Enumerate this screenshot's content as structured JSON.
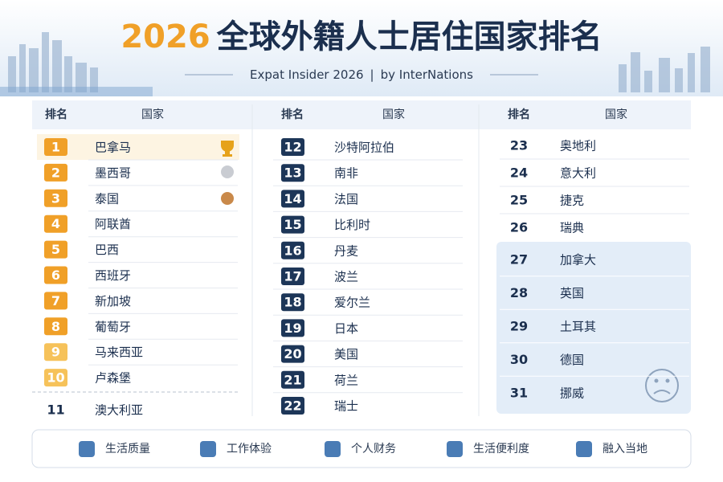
{
  "header": {
    "year": "2026",
    "title": "全球外籍人士居住国家排名",
    "subtitle": "Expat Insider 2026",
    "byline": "by InterNations"
  },
  "table": {
    "columns": [
      {
        "headers": [
          "排名",
          "国家"
        ],
        "rows": [
          [
            1,
            "巴拿马"
          ],
          [
            2,
            "墨西哥"
          ],
          [
            3,
            "泰国"
          ],
          [
            4,
            "阿联酋"
          ],
          [
            5,
            "巴西"
          ],
          [
            6,
            "西班牙"
          ],
          [
            7,
            "新加坡"
          ],
          [
            8,
            "葡萄牙"
          ],
          [
            9,
            "马来西亚"
          ],
          [
            10,
            "卢森堡"
          ],
          [
            11,
            "澳大利亚"
          ]
        ]
      },
      {
        "headers": [
          "排名",
          "国家"
        ],
        "rows": [
          [
            12,
            "沙特阿拉伯"
          ],
          [
            13,
            "南非"
          ],
          [
            14,
            "法国"
          ],
          [
            15,
            "比利时"
          ],
          [
            16,
            "丹麦"
          ],
          [
            17,
            "波兰"
          ],
          [
            18,
            "爱尔兰"
          ],
          [
            19,
            "日本"
          ],
          [
            20,
            "美国"
          ],
          [
            21,
            "荷兰"
          ],
          [
            22,
            "瑞士"
          ]
        ]
      },
      {
        "headers": [
          "排名",
          "国家"
        ],
        "rows": [
          [
            23,
            "奥地利"
          ],
          [
            24,
            "意大利"
          ],
          [
            25,
            "捷克"
          ],
          [
            26,
            "瑞典"
          ],
          [
            27,
            "加拿大"
          ],
          [
            28,
            "英国"
          ],
          [
            29,
            "土耳其"
          ],
          [
            30,
            "德国"
          ],
          [
            31,
            "挪威"
          ]
        ]
      }
    ]
  },
  "footer": {
    "items": [
      "生活质量",
      "工作体验",
      "个人财务",
      "生活便利度",
      "融入当地"
    ]
  }
}
